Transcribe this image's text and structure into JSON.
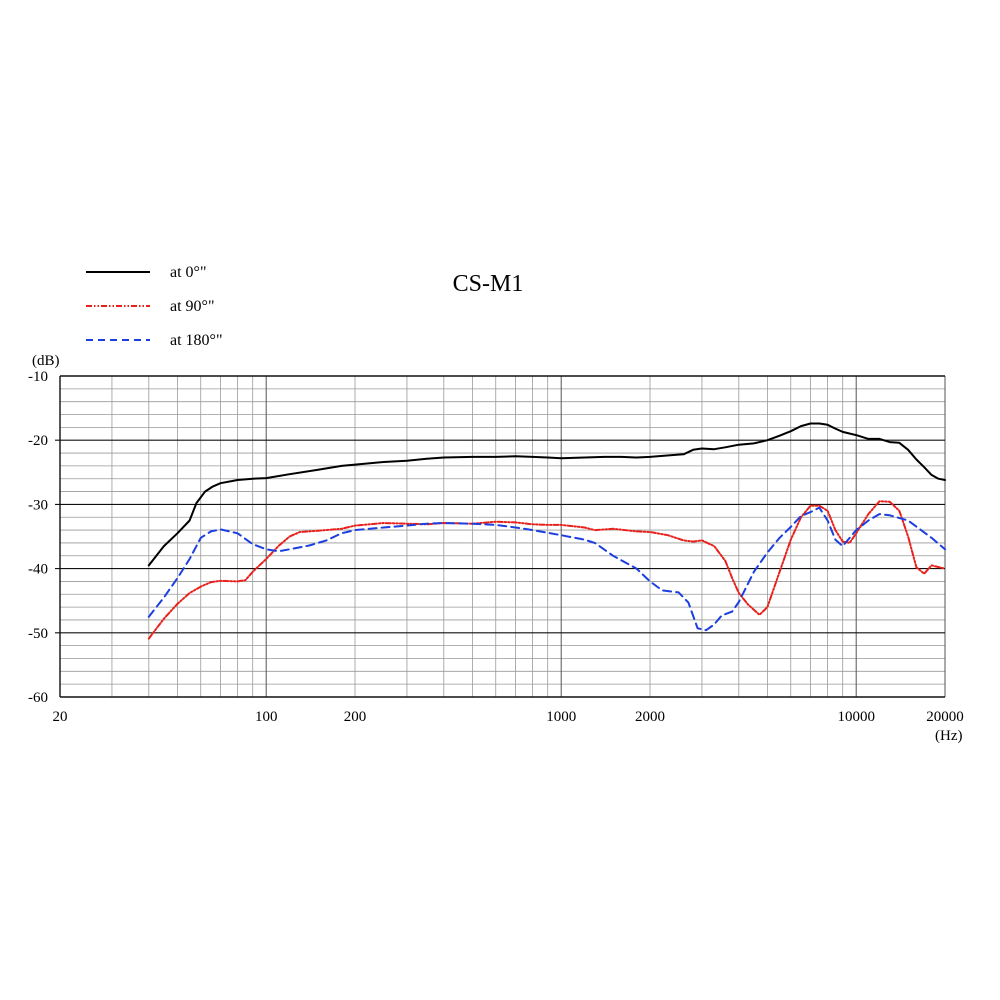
{
  "chart_data": {
    "type": "line",
    "title": "CS-M1",
    "xlabel": "(Hz)",
    "ylabel": "(dB)",
    "x_scale": "log",
    "xlim": [
      20,
      20000
    ],
    "ylim": [
      -60,
      -10
    ],
    "grid": true,
    "legend_position": "top-left",
    "x_tick_labels": [
      "20",
      "100",
      "200",
      "1000",
      "2000",
      "10000",
      "20000"
    ],
    "x_tick_values": [
      20,
      100,
      200,
      1000,
      2000,
      10000,
      20000
    ],
    "y_tick_labels": [
      "-10",
      "-20",
      "-30",
      "-40",
      "-50",
      "-60"
    ],
    "y_tick_values": [
      -10,
      -20,
      -30,
      -40,
      -50,
      -60
    ],
    "series": [
      {
        "name": "at 0°\"",
        "color": "#000000",
        "style": "solid",
        "points": [
          [
            40,
            -39.5
          ],
          [
            45,
            -36.5
          ],
          [
            50,
            -34.5
          ],
          [
            55,
            -32.5
          ],
          [
            58,
            -29.8
          ],
          [
            62,
            -28
          ],
          [
            66,
            -27.2
          ],
          [
            70,
            -26.7
          ],
          [
            80,
            -26.2
          ],
          [
            90,
            -26
          ],
          [
            100,
            -25.9
          ],
          [
            120,
            -25.3
          ],
          [
            150,
            -24.6
          ],
          [
            180,
            -24
          ],
          [
            200,
            -23.8
          ],
          [
            250,
            -23.4
          ],
          [
            300,
            -23.2
          ],
          [
            350,
            -22.9
          ],
          [
            400,
            -22.7
          ],
          [
            500,
            -22.6
          ],
          [
            600,
            -22.6
          ],
          [
            700,
            -22.5
          ],
          [
            800,
            -22.6
          ],
          [
            900,
            -22.7
          ],
          [
            1000,
            -22.8
          ],
          [
            1200,
            -22.7
          ],
          [
            1400,
            -22.6
          ],
          [
            1600,
            -22.6
          ],
          [
            1800,
            -22.7
          ],
          [
            2000,
            -22.6
          ],
          [
            2400,
            -22.3
          ],
          [
            2600,
            -22.2
          ],
          [
            2800,
            -21.5
          ],
          [
            3000,
            -21.3
          ],
          [
            3300,
            -21.4
          ],
          [
            3600,
            -21.1
          ],
          [
            4000,
            -20.7
          ],
          [
            4500,
            -20.5
          ],
          [
            5000,
            -20
          ],
          [
            5500,
            -19.3
          ],
          [
            6000,
            -18.6
          ],
          [
            6500,
            -17.8
          ],
          [
            7000,
            -17.4
          ],
          [
            7500,
            -17.4
          ],
          [
            8000,
            -17.6
          ],
          [
            8500,
            -18.2
          ],
          [
            9000,
            -18.7
          ],
          [
            10000,
            -19.2
          ],
          [
            11000,
            -19.8
          ],
          [
            12000,
            -19.8
          ],
          [
            13000,
            -20.3
          ],
          [
            14000,
            -20.4
          ],
          [
            15000,
            -21.5
          ],
          [
            16000,
            -23
          ],
          [
            17000,
            -24.2
          ],
          [
            18000,
            -25.4
          ],
          [
            19000,
            -26
          ],
          [
            20000,
            -26.2
          ]
        ]
      },
      {
        "name": "at 90°\"",
        "color": "#e8211c",
        "style": "dash-dot-dot",
        "points": [
          [
            40,
            -50.9
          ],
          [
            45,
            -47.8
          ],
          [
            50,
            -45.5
          ],
          [
            55,
            -43.8
          ],
          [
            60,
            -42.8
          ],
          [
            65,
            -42.1
          ],
          [
            70,
            -41.9
          ],
          [
            80,
            -42
          ],
          [
            85,
            -41.8
          ],
          [
            90,
            -40.5
          ],
          [
            100,
            -38.5
          ],
          [
            110,
            -36.5
          ],
          [
            120,
            -35
          ],
          [
            130,
            -34.3
          ],
          [
            150,
            -34.1
          ],
          [
            180,
            -33.8
          ],
          [
            200,
            -33.3
          ],
          [
            250,
            -32.9
          ],
          [
            300,
            -33
          ],
          [
            350,
            -33.1
          ],
          [
            400,
            -32.9
          ],
          [
            500,
            -33
          ],
          [
            600,
            -32.7
          ],
          [
            700,
            -32.8
          ],
          [
            800,
            -33.1
          ],
          [
            900,
            -33.2
          ],
          [
            1000,
            -33.2
          ],
          [
            1200,
            -33.6
          ],
          [
            1300,
            -34
          ],
          [
            1500,
            -33.8
          ],
          [
            1800,
            -34.2
          ],
          [
            2000,
            -34.3
          ],
          [
            2300,
            -34.8
          ],
          [
            2600,
            -35.6
          ],
          [
            2800,
            -35.8
          ],
          [
            3000,
            -35.6
          ],
          [
            3300,
            -36.5
          ],
          [
            3600,
            -38.8
          ],
          [
            3800,
            -41.5
          ],
          [
            4000,
            -43.8
          ],
          [
            4300,
            -45.6
          ],
          [
            4700,
            -47.2
          ],
          [
            5000,
            -46
          ],
          [
            5500,
            -40.5
          ],
          [
            6000,
            -35.5
          ],
          [
            6500,
            -32
          ],
          [
            7000,
            -30.2
          ],
          [
            7500,
            -30.2
          ],
          [
            8000,
            -31
          ],
          [
            8500,
            -34
          ],
          [
            9000,
            -35.8
          ],
          [
            9500,
            -36
          ],
          [
            10000,
            -34.5
          ],
          [
            11000,
            -31.5
          ],
          [
            12000,
            -29.5
          ],
          [
            13000,
            -29.6
          ],
          [
            14000,
            -31
          ],
          [
            15000,
            -35
          ],
          [
            16000,
            -39.8
          ],
          [
            17000,
            -40.8
          ],
          [
            18000,
            -39.5
          ],
          [
            20000,
            -40
          ]
        ]
      },
      {
        "name": "at 180°\"",
        "color": "#1c3fe0",
        "style": "dashed",
        "points": [
          [
            40,
            -47.5
          ],
          [
            45,
            -44.5
          ],
          [
            50,
            -41.5
          ],
          [
            55,
            -38.5
          ],
          [
            60,
            -35.2
          ],
          [
            65,
            -34.2
          ],
          [
            70,
            -33.9
          ],
          [
            80,
            -34.5
          ],
          [
            90,
            -36.2
          ],
          [
            100,
            -37
          ],
          [
            110,
            -37.3
          ],
          [
            120,
            -37
          ],
          [
            140,
            -36.4
          ],
          [
            160,
            -35.6
          ],
          [
            180,
            -34.5
          ],
          [
            200,
            -34
          ],
          [
            250,
            -33.6
          ],
          [
            300,
            -33.3
          ],
          [
            350,
            -33
          ],
          [
            400,
            -32.9
          ],
          [
            500,
            -33
          ],
          [
            600,
            -33.2
          ],
          [
            700,
            -33.6
          ],
          [
            800,
            -34
          ],
          [
            1000,
            -34.8
          ],
          [
            1200,
            -35.5
          ],
          [
            1300,
            -36
          ],
          [
            1500,
            -38
          ],
          [
            1800,
            -40
          ],
          [
            2000,
            -42
          ],
          [
            2200,
            -43.4
          ],
          [
            2500,
            -43.7
          ],
          [
            2700,
            -45.3
          ],
          [
            2900,
            -49.3
          ],
          [
            3100,
            -49.6
          ],
          [
            3300,
            -48.7
          ],
          [
            3500,
            -47.3
          ],
          [
            3800,
            -46.7
          ],
          [
            4000,
            -45.2
          ],
          [
            4500,
            -40.5
          ],
          [
            5000,
            -37.5
          ],
          [
            5500,
            -35.2
          ],
          [
            6000,
            -33.5
          ],
          [
            6500,
            -31.8
          ],
          [
            7000,
            -31.2
          ],
          [
            7500,
            -30.5
          ],
          [
            8000,
            -32.5
          ],
          [
            8500,
            -35.5
          ],
          [
            9000,
            -36.5
          ],
          [
            10000,
            -34
          ],
          [
            11000,
            -32.5
          ],
          [
            12000,
            -31.5
          ],
          [
            13000,
            -31.7
          ],
          [
            15000,
            -32.5
          ],
          [
            18000,
            -35.2
          ],
          [
            20000,
            -37
          ]
        ]
      }
    ]
  }
}
